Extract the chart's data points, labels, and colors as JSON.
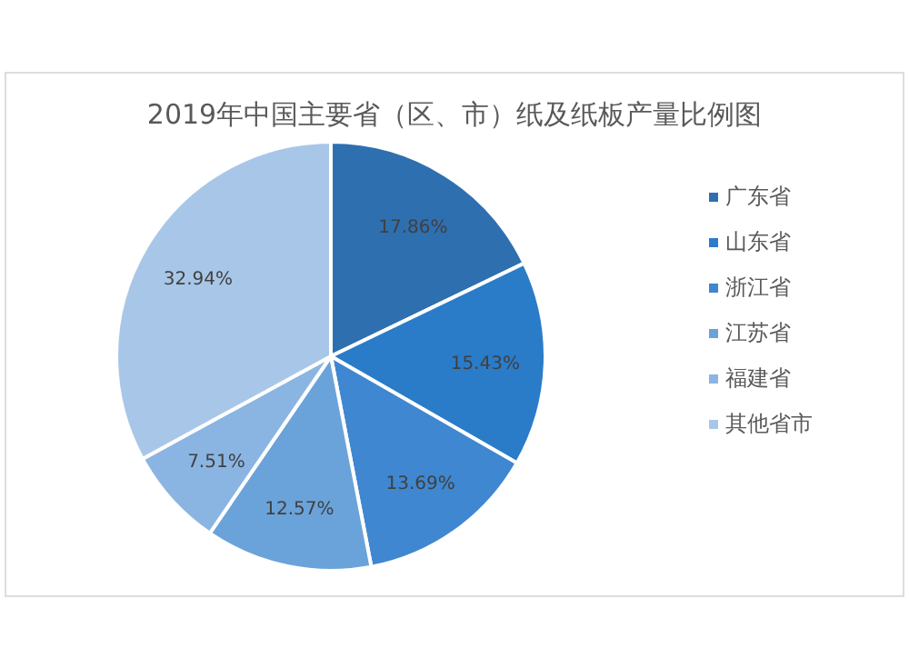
{
  "chart_data": {
    "type": "pie",
    "title": "2019年中国主要省（区、市）纸及纸板产量比例图",
    "categories": [
      "广东省",
      "山东省",
      "浙江省",
      "江苏省",
      "福建省",
      "其他省市"
    ],
    "values": [
      17.86,
      15.43,
      13.69,
      12.57,
      7.51,
      32.94
    ],
    "colors": [
      "#2e6fb0",
      "#2a7cc8",
      "#3f87d0",
      "#6aa3da",
      "#8ab5e2",
      "#a8c7e8"
    ],
    "value_labels": [
      "17.86%",
      "15.43%",
      "13.69%",
      "12.57%",
      "7.51%",
      "32.94%"
    ],
    "legend": "right"
  }
}
